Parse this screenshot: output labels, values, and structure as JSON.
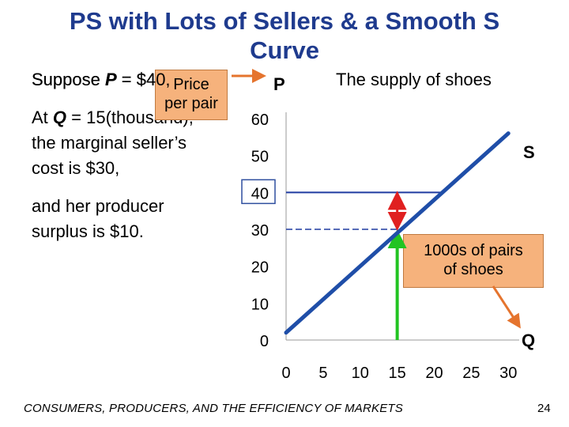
{
  "slide": {
    "title": "PS with Lots of Sellers & a Smooth S Curve",
    "footer": "CONSUMERS, PRODUCERS, AND THE EFFICIENCY OF MARKETS",
    "page_number": "24"
  },
  "text": {
    "line1_prefix": "Suppose ",
    "line1_var": "P",
    "line1_rest": " = $40,",
    "line2_prefix": "At ",
    "line2_var": "Q",
    "line2_rest": " = 15(thousand),",
    "line3": "the marginal seller’s",
    "line4": "cost is $30,",
    "line5": "and her producer",
    "line6": "surplus is $10."
  },
  "callouts": {
    "price_label_line1": "Price",
    "price_label_line2": "per pair",
    "price_target": "P",
    "quantity_label_line1": "1000s of pairs",
    "quantity_label_line2": "of shoes",
    "quantity_target": "Q"
  },
  "colors": {
    "title": "#1f3b8e",
    "supply_curve": "#1f4ea8",
    "price_line": "#1f3ba0",
    "arrow_red": "#e02020",
    "arrow_green": "#22c422",
    "callout_fill": "#f6b27c",
    "callout_arrow": "#e5742e",
    "axis": "#999999",
    "highlight_box": "#2f4f9f"
  },
  "chart_data": {
    "type": "line",
    "title": "The supply of shoes",
    "series": [
      {
        "name": "S",
        "x": [
          0,
          30
        ],
        "y": [
          2,
          56
        ]
      }
    ],
    "x_ticks": [
      0,
      5,
      10,
      15,
      20,
      25,
      30
    ],
    "y_ticks": [
      0,
      10,
      20,
      30,
      40,
      50,
      60
    ],
    "xlim": [
      0,
      32
    ],
    "ylim": [
      0,
      60
    ],
    "price": 40,
    "quantity": 15,
    "marginal_cost": 30,
    "producer_surplus": 10,
    "grid": false
  }
}
